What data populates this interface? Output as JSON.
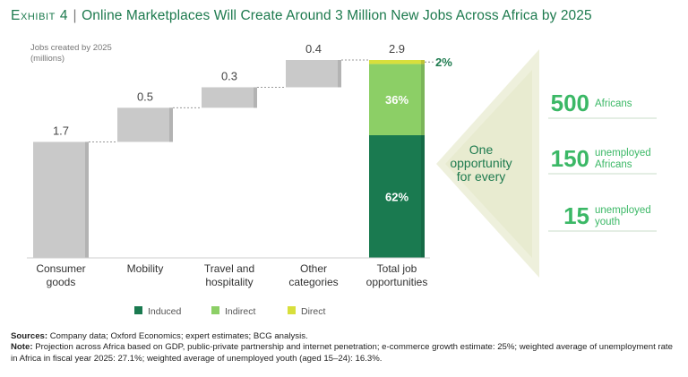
{
  "title": {
    "exhibit": "Exhibit 4",
    "separator": "|",
    "text": "Online Marketplaces Will Create Around 3 Million New Jobs Across Africa by 2025"
  },
  "chart_data": {
    "type": "bar",
    "subtype": "waterfall",
    "ylabel": [
      "Jobs created by 2025",
      "(millions)"
    ],
    "categories": [
      [
        "Consumer",
        "goods"
      ],
      [
        "Mobility"
      ],
      [
        "Travel and",
        "hospitality"
      ],
      [
        "Other",
        "categories"
      ],
      [
        "Total job",
        "opportunities"
      ]
    ],
    "values": [
      1.7,
      0.5,
      0.3,
      0.4,
      2.9
    ],
    "value_labels": [
      "1.7",
      "0.5",
      "0.3",
      "0.4",
      "2.9"
    ],
    "total_breakdown": [
      {
        "name": "Induced",
        "percent": 62,
        "label": "62%"
      },
      {
        "name": "Indirect",
        "percent": 36,
        "label": "36%"
      },
      {
        "name": "Direct",
        "percent": 2,
        "label": "2%"
      }
    ],
    "legend": [
      "Induced",
      "Indirect",
      "Direct"
    ],
    "legend_placement": "bottom",
    "colors": {
      "bar": "#c9c9c9",
      "induced": "#1a7a50",
      "indirect": "#8ccf66",
      "direct": "#d8df3c",
      "accent": "#1d7a4e",
      "side": "#3bb866"
    }
  },
  "side_panel": {
    "wedge_text": [
      "One",
      "opportunity",
      "for every"
    ],
    "items": [
      {
        "number": "500",
        "label": [
          "Africans"
        ]
      },
      {
        "number": "150",
        "label": [
          "unemployed",
          "Africans"
        ]
      },
      {
        "number": "15",
        "label": [
          "unemployed",
          "youth"
        ]
      }
    ]
  },
  "footer": {
    "sources_label": "Sources:",
    "sources_text": "Company data; Oxford Economics; expert estimates; BCG analysis.",
    "note_label": "Note:",
    "note_text": "Projection across Africa based on GDP, public-private partnership and internet penetration; e-commerce growth estimate: 25%; weighted average of unemployment rate in Africa in fiscal year 2025: 27.1%; weighted average of unemployed youth (aged 15–24): 16.3%."
  }
}
